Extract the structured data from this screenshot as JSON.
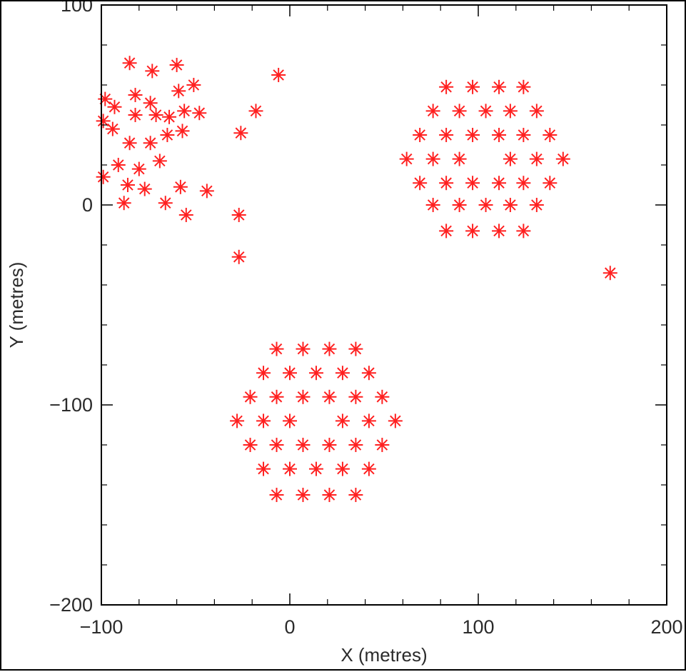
{
  "chart_data": {
    "type": "scatter",
    "title": "",
    "xlabel": "X (metres)",
    "ylabel": "Y (metres)",
    "xlim": [
      -100,
      200
    ],
    "ylim": [
      -200,
      100
    ],
    "xticks": [
      -100,
      0,
      100,
      200
    ],
    "xtick_labels": [
      "−100",
      "0",
      "100",
      "200"
    ],
    "yticks": [
      -200,
      -100,
      0,
      100
    ],
    "ytick_labels": [
      "−200",
      "−100",
      "0",
      "100"
    ],
    "grid": false,
    "legend": false,
    "marker": "asterisk",
    "marker_color": "#ff2020",
    "series": [
      {
        "points": [
          [
            -85,
            71
          ],
          [
            -73,
            67
          ],
          [
            -60,
            70
          ],
          [
            -98,
            53
          ],
          [
            -82,
            55
          ],
          [
            -74,
            51
          ],
          [
            -51,
            60
          ],
          [
            -93,
            49
          ],
          [
            -59,
            57
          ],
          [
            -56,
            47
          ],
          [
            -48,
            46
          ],
          [
            -82,
            45
          ],
          [
            -71,
            45
          ],
          [
            -64,
            44
          ],
          [
            -99,
            42
          ],
          [
            -94,
            38
          ],
          [
            -65,
            35
          ],
          [
            -57,
            37
          ],
          [
            -85,
            31
          ],
          [
            -74,
            31
          ],
          [
            -69,
            22
          ],
          [
            -91,
            20
          ],
          [
            -80,
            18
          ],
          [
            -99,
            14
          ],
          [
            -86,
            10
          ],
          [
            -77,
            8
          ],
          [
            -58,
            9
          ],
          [
            -44,
            7
          ],
          [
            -88,
            1
          ],
          [
            -66,
            1
          ],
          [
            -55,
            -5
          ],
          [
            -26,
            36
          ],
          [
            -18,
            47
          ],
          [
            -6,
            65
          ],
          [
            -27,
            -5
          ],
          [
            -27,
            -26
          ],
          [
            83,
            59
          ],
          [
            97,
            59
          ],
          [
            111,
            59
          ],
          [
            124,
            59
          ],
          [
            76,
            47
          ],
          [
            90,
            47
          ],
          [
            104,
            47
          ],
          [
            117,
            47
          ],
          [
            131,
            47
          ],
          [
            69,
            35
          ],
          [
            83,
            35
          ],
          [
            97,
            35
          ],
          [
            111,
            35
          ],
          [
            124,
            35
          ],
          [
            138,
            35
          ],
          [
            62,
            23
          ],
          [
            76,
            23
          ],
          [
            90,
            23
          ],
          [
            117,
            23
          ],
          [
            131,
            23
          ],
          [
            145,
            23
          ],
          [
            69,
            11
          ],
          [
            83,
            11
          ],
          [
            97,
            11
          ],
          [
            111,
            11
          ],
          [
            124,
            11
          ],
          [
            138,
            11
          ],
          [
            76,
            0
          ],
          [
            90,
            0
          ],
          [
            104,
            0
          ],
          [
            117,
            0
          ],
          [
            131,
            0
          ],
          [
            83,
            -13
          ],
          [
            97,
            -13
          ],
          [
            111,
            -13
          ],
          [
            124,
            -13
          ],
          [
            170,
            -34
          ],
          [
            -7,
            -72
          ],
          [
            7,
            -72
          ],
          [
            21,
            -72
          ],
          [
            35,
            -72
          ],
          [
            -14,
            -84
          ],
          [
            0,
            -84
          ],
          [
            14,
            -84
          ],
          [
            28,
            -84
          ],
          [
            42,
            -84
          ],
          [
            -21,
            -96
          ],
          [
            -7,
            -96
          ],
          [
            7,
            -96
          ],
          [
            21,
            -96
          ],
          [
            35,
            -96
          ],
          [
            49,
            -96
          ],
          [
            -28,
            -108
          ],
          [
            -14,
            -108
          ],
          [
            0,
            -108
          ],
          [
            28,
            -108
          ],
          [
            42,
            -108
          ],
          [
            56,
            -108
          ],
          [
            -21,
            -120
          ],
          [
            -7,
            -120
          ],
          [
            7,
            -120
          ],
          [
            21,
            -120
          ],
          [
            35,
            -120
          ],
          [
            49,
            -120
          ],
          [
            -14,
            -132
          ],
          [
            0,
            -132
          ],
          [
            14,
            -132
          ],
          [
            28,
            -132
          ],
          [
            42,
            -132
          ],
          [
            -7,
            -145
          ],
          [
            7,
            -145
          ],
          [
            21,
            -145
          ],
          [
            35,
            -145
          ]
        ]
      }
    ]
  }
}
